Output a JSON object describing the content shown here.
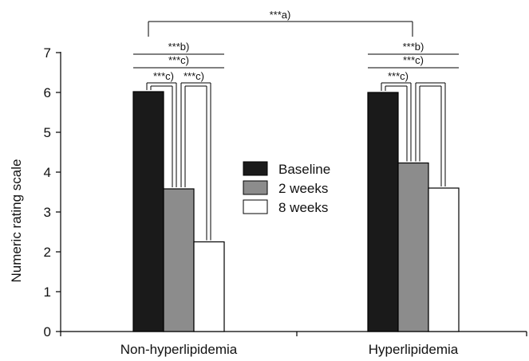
{
  "chart_data": {
    "type": "bar",
    "title": "",
    "xlabel": "",
    "ylabel": "Numeric rating scale",
    "ylim": [
      0,
      7
    ],
    "yticks": [
      0,
      1,
      2,
      3,
      4,
      5,
      6,
      7
    ],
    "categories": [
      "Non-hyperlipidemia",
      "Hyperlipidemia"
    ],
    "series": [
      {
        "name": "Baseline",
        "values": [
          6.02,
          6.0
        ],
        "color": "#1a1a1a"
      },
      {
        "name": "2 weeks",
        "values": [
          3.58,
          4.23
        ],
        "color": "#8c8c8c"
      },
      {
        "name": "8 weeks",
        "values": [
          2.25,
          3.6
        ],
        "color": "#ffffff"
      }
    ],
    "legend": {
      "position": "center"
    },
    "grid": false,
    "annotations": {
      "between_groups": "***a)",
      "groups": [
        {
          "top": "***b)",
          "middle": "***c)",
          "pair1": "***c)",
          "pair2": "***c)"
        },
        {
          "top": "***b)",
          "middle": "***c)",
          "pair1": "***c)",
          "pair2": ""
        }
      ]
    }
  }
}
